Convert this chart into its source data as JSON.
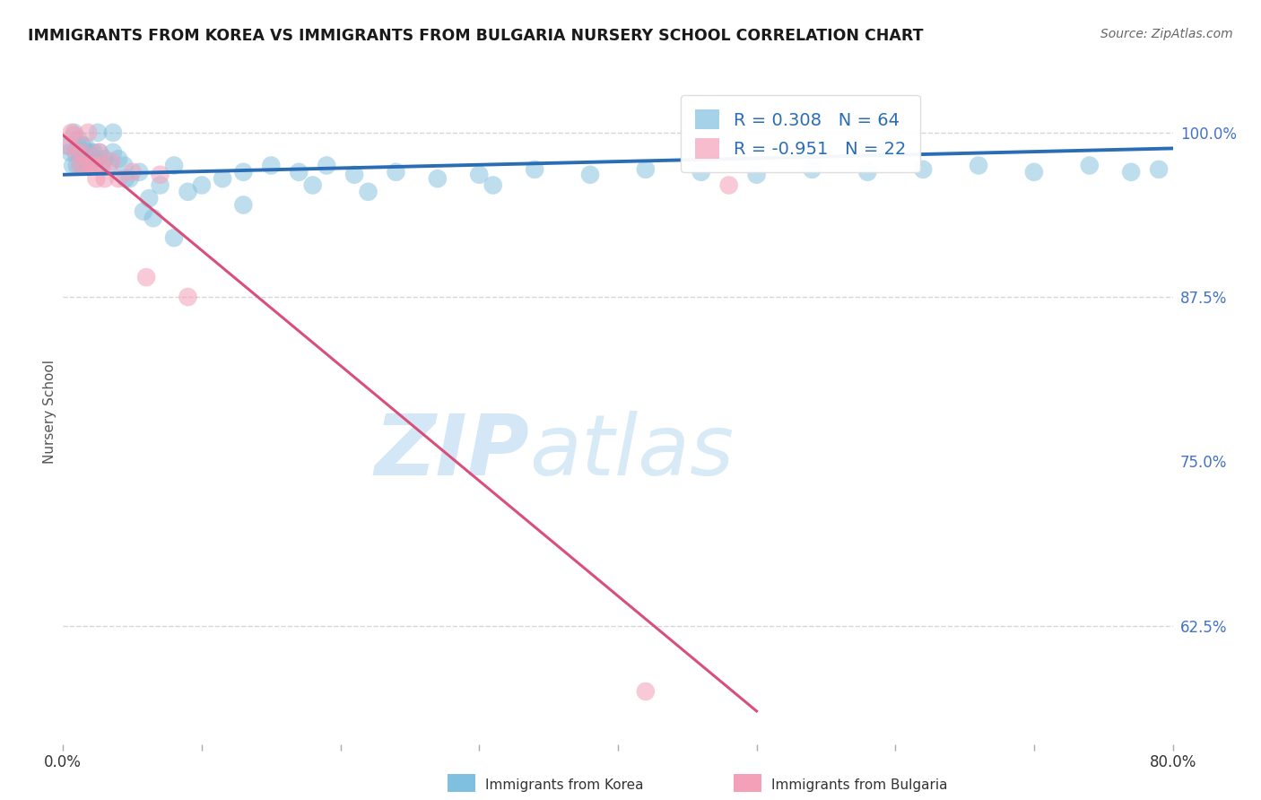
{
  "title": "IMMIGRANTS FROM KOREA VS IMMIGRANTS FROM BULGARIA NURSERY SCHOOL CORRELATION CHART",
  "source": "Source: ZipAtlas.com",
  "ylabel": "Nursery School",
  "R_korea": 0.308,
  "N_korea": 64,
  "R_bulgaria": -0.951,
  "N_bulgaria": 22,
  "korea_color": "#7fbfdf",
  "bulgaria_color": "#f4a0b8",
  "korea_line_color": "#2b6db5",
  "bulgaria_line_color": "#d94f7c",
  "background_color": "#ffffff",
  "legend_korea": "Immigrants from Korea",
  "legend_bulgaria": "Immigrants from Bulgaria",
  "xlim": [
    0.0,
    0.8
  ],
  "ylim": [
    0.535,
    1.04
  ],
  "ytick_vals": [
    0.625,
    0.75,
    0.875,
    1.0
  ],
  "ytick_labels": [
    "62.5%",
    "75.0%",
    "87.5%",
    "100.0%"
  ],
  "dashed_line_y1": 1.0,
  "dashed_line_y2": 0.875,
  "dashed_line_y3": 0.625,
  "korea_scatter_x": [
    0.003,
    0.005,
    0.007,
    0.008,
    0.009,
    0.01,
    0.011,
    0.012,
    0.013,
    0.014,
    0.015,
    0.016,
    0.017,
    0.018,
    0.019,
    0.02,
    0.022,
    0.024,
    0.026,
    0.028,
    0.03,
    0.033,
    0.036,
    0.04,
    0.044,
    0.048,
    0.055,
    0.062,
    0.07,
    0.08,
    0.09,
    0.1,
    0.115,
    0.13,
    0.15,
    0.17,
    0.19,
    0.21,
    0.24,
    0.27,
    0.3,
    0.34,
    0.38,
    0.42,
    0.46,
    0.5,
    0.54,
    0.58,
    0.62,
    0.66,
    0.7,
    0.74,
    0.77,
    0.79,
    0.058,
    0.025,
    0.036,
    0.08,
    0.13,
    0.22,
    0.31,
    0.045,
    0.065,
    0.18
  ],
  "korea_scatter_y": [
    0.99,
    0.985,
    0.975,
    1.0,
    0.985,
    0.975,
    0.995,
    0.985,
    0.975,
    0.99,
    0.985,
    0.99,
    0.98,
    0.975,
    0.985,
    0.975,
    0.985,
    0.98,
    0.985,
    0.975,
    0.98,
    0.975,
    0.985,
    0.98,
    0.975,
    0.965,
    0.97,
    0.95,
    0.96,
    0.975,
    0.955,
    0.96,
    0.965,
    0.97,
    0.975,
    0.97,
    0.975,
    0.968,
    0.97,
    0.965,
    0.968,
    0.972,
    0.968,
    0.972,
    0.97,
    0.968,
    0.972,
    0.97,
    0.972,
    0.975,
    0.97,
    0.975,
    0.97,
    0.972,
    0.94,
    1.0,
    1.0,
    0.92,
    0.945,
    0.955,
    0.96,
    0.965,
    0.935,
    0.96
  ],
  "bulgaria_scatter_x": [
    0.004,
    0.006,
    0.008,
    0.01,
    0.012,
    0.014,
    0.016,
    0.018,
    0.02,
    0.022,
    0.024,
    0.026,
    0.028,
    0.03,
    0.035,
    0.04,
    0.05,
    0.06,
    0.07,
    0.09,
    0.42,
    0.48
  ],
  "bulgaria_scatter_y": [
    0.99,
    1.0,
    0.998,
    0.985,
    0.975,
    0.985,
    0.975,
    1.0,
    0.975,
    0.975,
    0.965,
    0.985,
    0.975,
    0.965,
    0.978,
    0.965,
    0.97,
    0.89,
    0.968,
    0.875,
    0.575,
    0.96
  ],
  "korea_line_x": [
    0.0,
    0.8
  ],
  "korea_line_y": [
    0.968,
    0.988
  ],
  "bulgaria_line_x": [
    0.0,
    0.5
  ],
  "bulgaria_line_y": [
    0.998,
    0.56
  ]
}
